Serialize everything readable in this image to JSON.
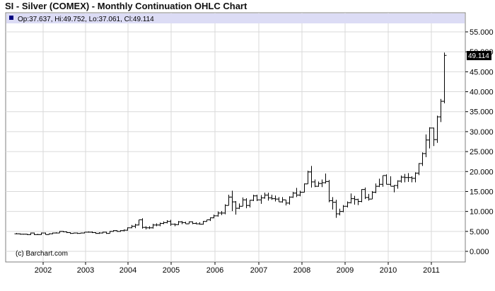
{
  "title": "SI - Silver (COMEX) - Monthly Continuation OHLC Chart",
  "info": {
    "label": "Op:37.637, Hi:49.752, Lo:37.061, Cl:49.114"
  },
  "last_price": "49.114",
  "copyright": "(c) Barchart.com",
  "colors": {
    "info_bar": "#dcdcf5",
    "last_price_box": "#000000",
    "grid": "#d9d9d9",
    "bars": "#000000",
    "info_marker": "#000080"
  },
  "chart_data": {
    "type": "ohlc",
    "frequency": "monthly",
    "ylim": [
      0,
      57
    ],
    "y_ticks": [
      "0.000",
      "5.000",
      "10.000",
      "15.000",
      "20.000",
      "25.000",
      "30.000",
      "35.000",
      "40.000",
      "45.000",
      "50.000",
      "55.000"
    ],
    "x_ticks": [
      "2002",
      "2003",
      "2004",
      "2005",
      "2006",
      "2007",
      "2008",
      "2009",
      "2010",
      "2011"
    ],
    "grid": true,
    "series": [
      {
        "x": [
          "2001-05",
          "2001-06",
          "2001-07",
          "2001-08",
          "2001-09",
          "2001-10",
          "2001-11",
          "2001-12",
          "2002-01",
          "2002-02",
          "2002-03",
          "2002-04",
          "2002-05",
          "2002-06",
          "2002-07",
          "2002-08",
          "2002-09",
          "2002-10",
          "2002-11",
          "2002-12",
          "2003-01",
          "2003-02",
          "2003-03",
          "2003-04",
          "2003-05",
          "2003-06",
          "2003-07",
          "2003-08",
          "2003-09",
          "2003-10",
          "2003-11",
          "2003-12",
          "2004-01",
          "2004-02",
          "2004-03",
          "2004-04",
          "2004-05",
          "2004-06",
          "2004-07",
          "2004-08",
          "2004-09",
          "2004-10",
          "2004-11",
          "2004-12",
          "2005-01",
          "2005-02",
          "2005-03",
          "2005-04",
          "2005-05",
          "2005-06",
          "2005-07",
          "2005-08",
          "2005-09",
          "2005-10",
          "2005-11",
          "2005-12",
          "2006-01",
          "2006-02",
          "2006-03",
          "2006-04",
          "2006-05",
          "2006-06",
          "2006-07",
          "2006-08",
          "2006-09",
          "2006-10",
          "2006-11",
          "2006-12",
          "2007-01",
          "2007-02",
          "2007-03",
          "2007-04",
          "2007-05",
          "2007-06",
          "2007-07",
          "2007-08",
          "2007-09",
          "2007-10",
          "2007-11",
          "2007-12",
          "2008-01",
          "2008-02",
          "2008-03",
          "2008-04",
          "2008-05",
          "2008-06",
          "2008-07",
          "2008-08",
          "2008-09",
          "2008-10",
          "2008-11",
          "2008-12",
          "2009-01",
          "2009-02",
          "2009-03",
          "2009-04",
          "2009-05",
          "2009-06",
          "2009-07",
          "2009-08",
          "2009-09",
          "2009-10",
          "2009-11",
          "2009-12",
          "2010-01",
          "2010-02",
          "2010-03",
          "2010-04",
          "2010-05",
          "2010-06",
          "2010-07",
          "2010-08",
          "2010-09",
          "2010-10",
          "2010-11",
          "2010-12",
          "2011-01",
          "2011-02",
          "2011-03",
          "2011-04"
        ],
        "open": [
          4.4,
          4.4,
          4.3,
          4.3,
          4.2,
          4.6,
          4.2,
          4.2,
          4.6,
          4.2,
          4.4,
          4.6,
          4.6,
          5.0,
          4.9,
          4.7,
          4.5,
          4.6,
          4.5,
          4.6,
          4.8,
          4.8,
          4.7,
          4.5,
          4.6,
          4.8,
          4.5,
          5.0,
          5.2,
          5.0,
          5.2,
          5.3,
          5.9,
          6.3,
          6.6,
          7.9,
          6.0,
          5.9,
          5.9,
          6.6,
          6.6,
          7.0,
          7.2,
          7.5,
          6.8,
          6.7,
          7.4,
          7.2,
          6.9,
          7.4,
          7.0,
          6.9,
          6.8,
          7.5,
          7.9,
          8.4,
          8.9,
          9.6,
          9.6,
          11.5,
          13.6,
          12.4,
          10.8,
          11.3,
          12.9,
          11.5,
          12.8,
          13.9,
          12.9,
          13.4,
          14.1,
          13.4,
          13.2,
          13.1,
          12.4,
          12.9,
          12.1,
          13.6,
          14.6,
          14.1,
          14.8,
          16.9,
          19.9,
          17.4,
          16.3,
          17.0,
          17.2,
          17.5,
          12.7,
          12.3,
          9.4,
          10.0,
          11.3,
          12.2,
          13.2,
          13.0,
          12.5,
          15.5,
          13.5,
          13.1,
          14.8,
          16.3,
          16.8,
          19.0,
          16.8,
          16.3,
          16.5,
          17.6,
          18.6,
          18.5,
          18.5,
          18.3,
          19.6,
          22.0,
          24.5,
          27.9,
          30.9,
          28.0,
          33.7,
          37.6
        ],
        "high": [
          4.6,
          4.5,
          4.4,
          4.4,
          4.7,
          4.7,
          4.4,
          4.7,
          4.7,
          4.5,
          4.7,
          4.8,
          5.1,
          5.1,
          5.0,
          4.8,
          4.7,
          4.7,
          4.7,
          4.8,
          5.0,
          5.0,
          4.8,
          4.8,
          4.9,
          4.9,
          5.1,
          5.3,
          5.3,
          5.3,
          5.5,
          6.0,
          6.6,
          6.9,
          7.9,
          8.3,
          6.3,
          6.3,
          6.9,
          7.0,
          7.2,
          7.5,
          7.8,
          7.9,
          7.0,
          7.6,
          7.6,
          7.4,
          7.5,
          7.5,
          7.3,
          7.3,
          7.6,
          7.9,
          8.5,
          9.2,
          10.0,
          10.1,
          11.8,
          14.2,
          15.2,
          12.6,
          12.0,
          13.5,
          13.3,
          12.9,
          14.2,
          14.2,
          14.1,
          14.7,
          14.7,
          14.2,
          14.0,
          13.6,
          13.6,
          12.9,
          13.8,
          14.9,
          15.9,
          15.2,
          17.0,
          20.2,
          21.4,
          18.0,
          17.5,
          18.0,
          19.5,
          17.9,
          13.6,
          12.9,
          10.7,
          11.6,
          12.5,
          14.5,
          13.9,
          13.2,
          15.6,
          16.0,
          14.4,
          15.1,
          17.0,
          18.2,
          19.0,
          19.3,
          18.8,
          16.6,
          17.8,
          19.0,
          19.4,
          19.6,
          18.8,
          19.8,
          22.1,
          24.8,
          29.3,
          31.1,
          31.0,
          34.0,
          38.2,
          49.8
        ],
        "low": [
          4.3,
          4.2,
          4.2,
          4.1,
          4.1,
          4.1,
          4.1,
          4.1,
          4.2,
          4.2,
          4.3,
          4.5,
          4.6,
          4.8,
          4.6,
          4.4,
          4.5,
          4.4,
          4.5,
          4.5,
          4.7,
          4.6,
          4.4,
          4.4,
          4.5,
          4.4,
          4.5,
          4.9,
          4.9,
          4.9,
          5.0,
          5.2,
          5.8,
          5.8,
          6.5,
          5.7,
          5.5,
          5.6,
          5.7,
          6.3,
          6.3,
          6.8,
          7.0,
          6.4,
          6.3,
          6.6,
          6.8,
          6.9,
          6.9,
          6.8,
          6.8,
          6.7,
          6.7,
          7.4,
          7.6,
          8.3,
          8.7,
          9.1,
          9.3,
          11.5,
          10.1,
          9.2,
          10.6,
          11.3,
          10.8,
          11.0,
          12.6,
          12.6,
          11.9,
          13.2,
          12.7,
          12.9,
          12.5,
          12.4,
          12.2,
          11.5,
          11.7,
          13.4,
          13.6,
          13.8,
          14.8,
          16.9,
          16.0,
          16.1,
          16.2,
          16.1,
          17.0,
          12.3,
          10.5,
          8.4,
          9.0,
          9.8,
          11.0,
          12.0,
          11.7,
          11.6,
          12.3,
          13.1,
          12.7,
          13.1,
          14.6,
          16.1,
          16.2,
          16.8,
          16.4,
          14.8,
          15.7,
          17.2,
          17.3,
          17.4,
          17.3,
          17.3,
          19.1,
          21.4,
          23.6,
          25.8,
          26.4,
          27.2,
          32.4,
          37.1
        ],
        "close": [
          4.4,
          4.3,
          4.3,
          4.2,
          4.6,
          4.2,
          4.2,
          4.6,
          4.2,
          4.4,
          4.6,
          4.6,
          5.0,
          4.9,
          4.7,
          4.5,
          4.6,
          4.5,
          4.6,
          4.8,
          4.8,
          4.7,
          4.5,
          4.6,
          4.8,
          4.5,
          5.0,
          5.2,
          5.0,
          5.2,
          5.3,
          5.9,
          6.3,
          6.6,
          7.9,
          6.0,
          5.9,
          5.9,
          6.6,
          6.6,
          7.0,
          7.2,
          7.5,
          6.8,
          6.7,
          7.4,
          7.2,
          6.9,
          7.4,
          7.0,
          6.9,
          6.8,
          7.5,
          7.9,
          8.4,
          8.9,
          9.6,
          9.6,
          11.5,
          13.6,
          12.4,
          10.8,
          11.3,
          12.9,
          11.5,
          12.8,
          13.9,
          12.9,
          13.4,
          14.1,
          13.4,
          13.2,
          13.1,
          12.4,
          12.9,
          12.1,
          13.6,
          14.6,
          14.1,
          14.8,
          16.9,
          19.9,
          17.4,
          16.3,
          17.0,
          17.2,
          17.5,
          12.7,
          12.3,
          9.4,
          10.0,
          11.3,
          12.2,
          13.2,
          13.0,
          12.5,
          15.5,
          13.5,
          13.1,
          14.8,
          16.3,
          16.8,
          19.0,
          16.8,
          16.3,
          16.5,
          17.6,
          18.6,
          18.5,
          18.5,
          18.3,
          19.6,
          22.0,
          24.5,
          27.9,
          30.9,
          28.0,
          33.7,
          37.6,
          49.1
        ]
      }
    ]
  }
}
